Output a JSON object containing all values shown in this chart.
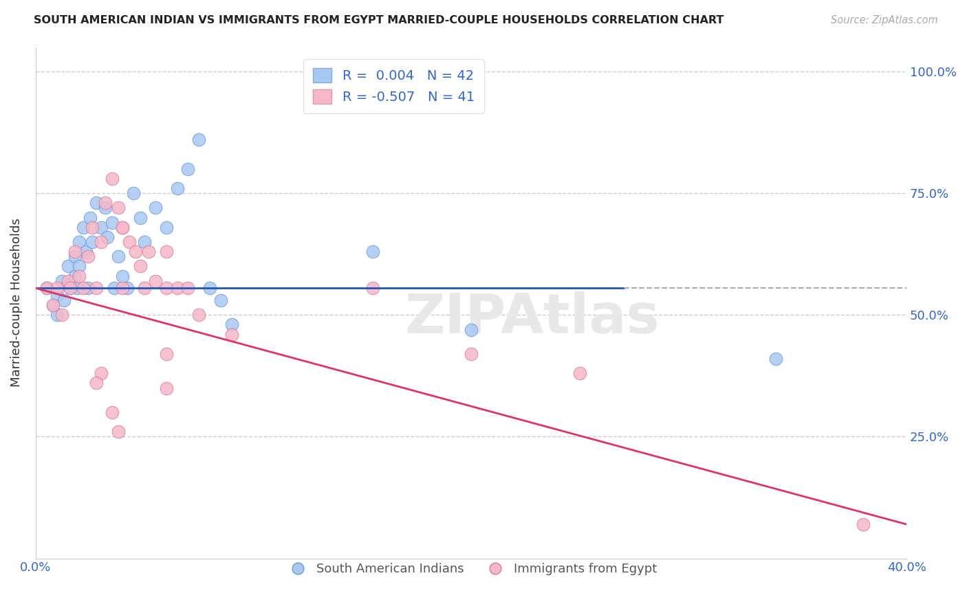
{
  "title": "SOUTH AMERICAN INDIAN VS IMMIGRANTS FROM EGYPT MARRIED-COUPLE HOUSEHOLDS CORRELATION CHART",
  "source": "Source: ZipAtlas.com",
  "ylabel": "Married-couple Households",
  "xlim": [
    0.0,
    0.4
  ],
  "ylim": [
    0.0,
    1.05
  ],
  "blue_color": "#a8c8f0",
  "pink_color": "#f5b8c8",
  "trendline_blue": "#2255bb",
  "trendline_pink": "#dd3366",
  "trendline_blue_y0": 0.555,
  "trendline_blue_y1": 0.555,
  "trendline_pink_y0": 0.555,
  "trendline_pink_y1": 0.07,
  "trendline_blue_solid_end": 0.27,
  "blue_scatter_x": [
    0.005,
    0.008,
    0.01,
    0.01,
    0.012,
    0.013,
    0.015,
    0.015,
    0.016,
    0.018,
    0.018,
    0.019,
    0.02,
    0.02,
    0.022,
    0.023,
    0.024,
    0.025,
    0.026,
    0.028,
    0.03,
    0.032,
    0.033,
    0.035,
    0.036,
    0.038,
    0.04,
    0.042,
    0.045,
    0.048,
    0.05,
    0.055,
    0.06,
    0.065,
    0.07,
    0.075,
    0.08,
    0.085,
    0.09,
    0.155,
    0.2,
    0.34
  ],
  "blue_scatter_y": [
    0.555,
    0.52,
    0.54,
    0.5,
    0.57,
    0.53,
    0.6,
    0.56,
    0.555,
    0.62,
    0.58,
    0.555,
    0.65,
    0.6,
    0.68,
    0.63,
    0.555,
    0.7,
    0.65,
    0.73,
    0.68,
    0.72,
    0.66,
    0.69,
    0.555,
    0.62,
    0.58,
    0.555,
    0.75,
    0.7,
    0.65,
    0.72,
    0.68,
    0.76,
    0.8,
    0.86,
    0.555,
    0.53,
    0.48,
    0.63,
    0.47,
    0.41
  ],
  "pink_scatter_x": [
    0.005,
    0.008,
    0.01,
    0.012,
    0.015,
    0.016,
    0.018,
    0.02,
    0.022,
    0.024,
    0.026,
    0.028,
    0.03,
    0.032,
    0.035,
    0.038,
    0.04,
    0.043,
    0.046,
    0.048,
    0.05,
    0.055,
    0.06,
    0.065,
    0.07,
    0.075,
    0.052,
    0.09,
    0.06,
    0.04,
    0.03,
    0.155,
    0.2,
    0.25,
    0.028,
    0.035,
    0.06,
    0.38,
    0.06,
    0.04,
    0.038
  ],
  "pink_scatter_y": [
    0.555,
    0.52,
    0.555,
    0.5,
    0.57,
    0.555,
    0.63,
    0.58,
    0.555,
    0.62,
    0.68,
    0.555,
    0.65,
    0.73,
    0.78,
    0.72,
    0.68,
    0.65,
    0.63,
    0.6,
    0.555,
    0.57,
    0.555,
    0.555,
    0.555,
    0.5,
    0.63,
    0.46,
    0.42,
    0.555,
    0.38,
    0.555,
    0.42,
    0.38,
    0.36,
    0.3,
    0.35,
    0.07,
    0.63,
    0.68,
    0.26
  ]
}
